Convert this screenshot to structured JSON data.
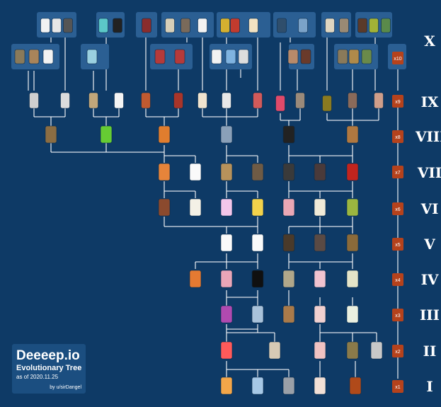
{
  "title": {
    "app": "Deeeep.io",
    "subtitle": "Evolutionary Tree",
    "date": "as of 2020.11.25",
    "author": "by u/sirDangel"
  },
  "tiers": [
    "X",
    "IX",
    "VIII",
    "VII",
    "VI",
    "V",
    "IV",
    "III",
    "II",
    "I"
  ],
  "xp_badges": [
    "x10",
    "x9",
    "x8",
    "x7",
    "x6",
    "x5",
    "x4",
    "x3",
    "x2",
    "x1"
  ],
  "colors": {
    "background": "#0e3a66",
    "panel": "#1b4e80",
    "line": "#ffffff",
    "badge": "#b5421c"
  }
}
